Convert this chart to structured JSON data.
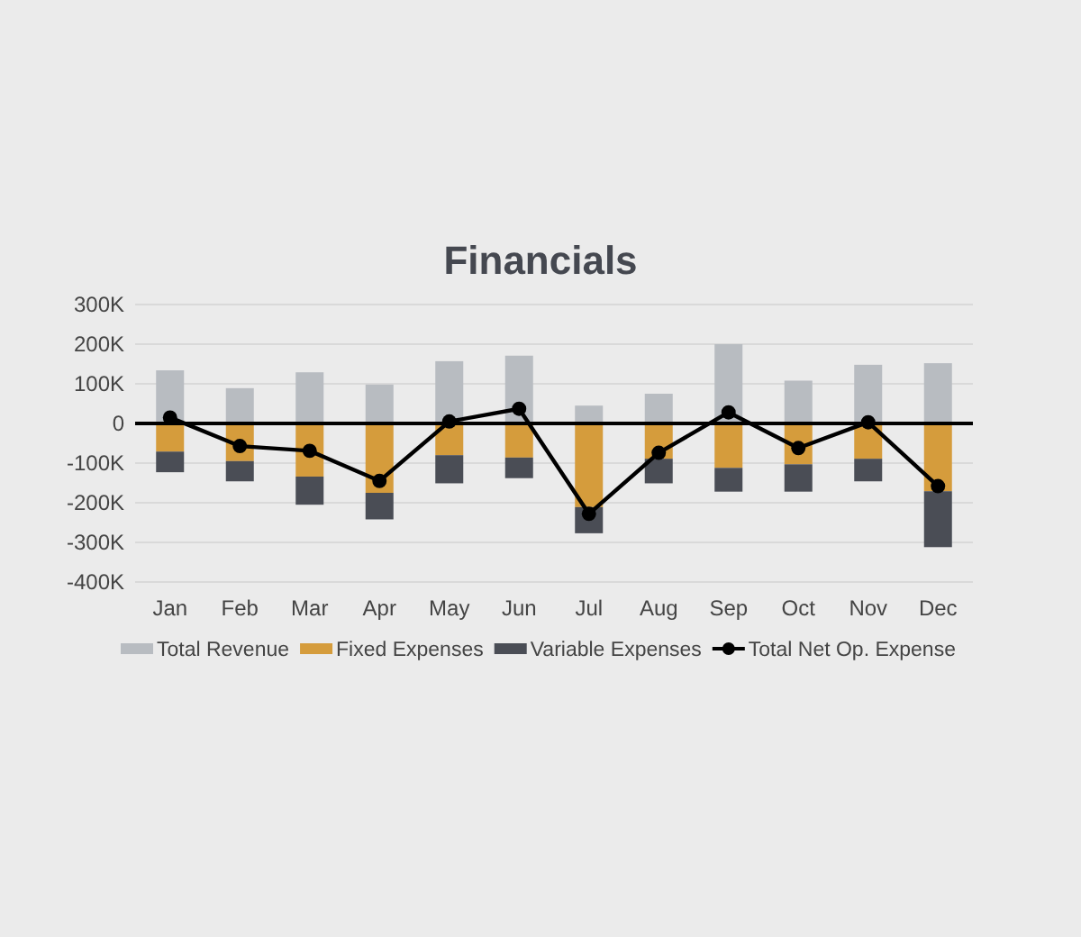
{
  "chart_data": {
    "type": "bar",
    "title": "Financials",
    "stacked": true,
    "grid": "y",
    "legend": "bottom",
    "categories": [
      "Jan",
      "Feb",
      "Mar",
      "Apr",
      "May",
      "Jun",
      "Jul",
      "Aug",
      "Sep",
      "Oct",
      "Nov",
      "Dec"
    ],
    "ylim": [
      -400000,
      300000
    ],
    "yticks": [
      {
        "value": -400000,
        "label": "-400K"
      },
      {
        "value": -300000,
        "label": "-300K"
      },
      {
        "value": -200000,
        "label": "-200K"
      },
      {
        "value": -100000,
        "label": "-100K"
      },
      0,
      {
        "value": 100000,
        "label": "100K"
      },
      {
        "value": 200000,
        "label": "200K"
      },
      {
        "value": 300000,
        "label": "300K"
      }
    ],
    "series": [
      {
        "name": "Total Revenue",
        "color": "#b8bcc1",
        "values": [
          134000,
          89000,
          129000,
          98000,
          157000,
          171000,
          45000,
          75000,
          200000,
          108000,
          148000,
          152000
        ]
      },
      {
        "name": "Fixed Expenses",
        "color": "#d59c3c",
        "values": [
          -71000,
          -95000,
          -134000,
          -175000,
          -80000,
          -86000,
          -211000,
          -89000,
          -112000,
          -103000,
          -89000,
          -171000
        ]
      },
      {
        "name": "Variable Expenses",
        "color": "#4a4d55",
        "values": [
          -52000,
          -51000,
          -71000,
          -67000,
          -71000,
          -52000,
          -66000,
          -62000,
          -60000,
          -69000,
          -57000,
          -141000
        ]
      },
      {
        "name": "Total Net Op. Expense",
        "type": "line",
        "color": "#000000",
        "marker": "circle",
        "line_style": "solid",
        "values": [
          15000,
          -57000,
          -69000,
          -145000,
          5000,
          37000,
          -228000,
          -74000,
          28000,
          -62000,
          3000,
          -158000
        ]
      }
    ]
  }
}
